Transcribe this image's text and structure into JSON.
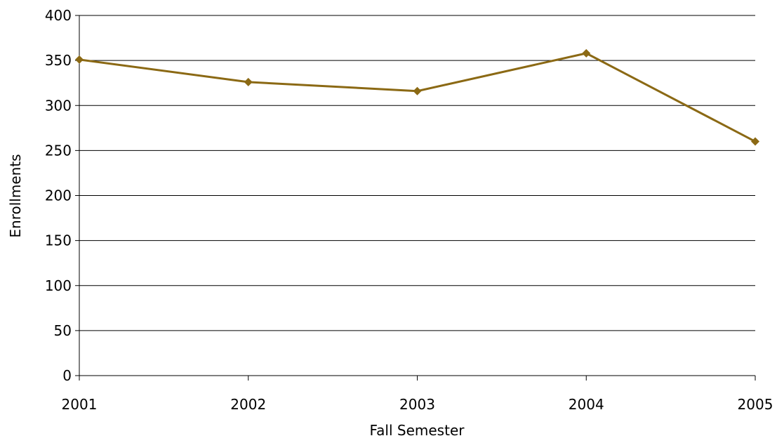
{
  "chart_data": {
    "type": "line",
    "title": "",
    "xlabel": "Fall Semester",
    "ylabel": "Enrollments",
    "categories": [
      "2001",
      "2002",
      "2003",
      "2004",
      "2005"
    ],
    "series": [
      {
        "values": [
          351,
          326,
          316,
          358,
          260
        ],
        "color": "#8B6914",
        "marker": "diamond"
      }
    ],
    "ylim": [
      0,
      400
    ],
    "yticks": [
      0,
      50,
      100,
      150,
      200,
      250,
      300,
      350,
      400
    ],
    "grid": "horizontal",
    "legend": "none"
  }
}
